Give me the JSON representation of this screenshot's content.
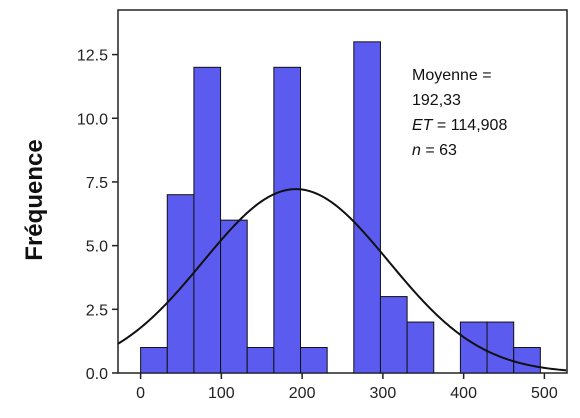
{
  "chart_data": {
    "type": "bar",
    "ylabel": "Fréquence",
    "xlabel": "",
    "xlim": [
      -28,
      528
    ],
    "ylim": [
      0,
      14.25
    ],
    "x_ticks": [
      0,
      100,
      200,
      300,
      400,
      500
    ],
    "x_tick_labels": [
      "0",
      "100",
      "200",
      "300",
      "400",
      "500"
    ],
    "y_ticks": [
      0,
      2.5,
      5,
      7.5,
      10,
      12.5
    ],
    "y_tick_labels": [
      "0.0",
      "2.5",
      "5.0",
      "7.5",
      "10.0",
      "12.5"
    ],
    "bins": [
      {
        "start": 0,
        "end": 33,
        "value": 1
      },
      {
        "start": 33,
        "end": 66,
        "value": 7
      },
      {
        "start": 66,
        "end": 99,
        "value": 12
      },
      {
        "start": 99,
        "end": 132,
        "value": 6
      },
      {
        "start": 132,
        "end": 165,
        "value": 1
      },
      {
        "start": 165,
        "end": 198,
        "value": 12
      },
      {
        "start": 198,
        "end": 231,
        "value": 1
      },
      {
        "start": 231,
        "end": 264,
        "value": 0
      },
      {
        "start": 264,
        "end": 297,
        "value": 13
      },
      {
        "start": 297,
        "end": 330,
        "value": 3
      },
      {
        "start": 330,
        "end": 363,
        "value": 2
      },
      {
        "start": 363,
        "end": 396,
        "value": 0
      },
      {
        "start": 396,
        "end": 429,
        "value": 2
      },
      {
        "start": 429,
        "end": 462,
        "value": 2
      },
      {
        "start": 462,
        "end": 495,
        "value": 1
      }
    ],
    "bar_color": "#5b5bf0",
    "curve": {
      "type": "normal",
      "mean": 192.33,
      "sd": 114.908,
      "n": 63,
      "color": "#111111"
    },
    "annotations": {
      "mean_line1": "Moyenne =",
      "mean_line2": "192,33",
      "sd_label": "ET",
      "sd_value": " = 114,908",
      "n_label": "n",
      "n_value": " = 63"
    },
    "grid": false
  }
}
